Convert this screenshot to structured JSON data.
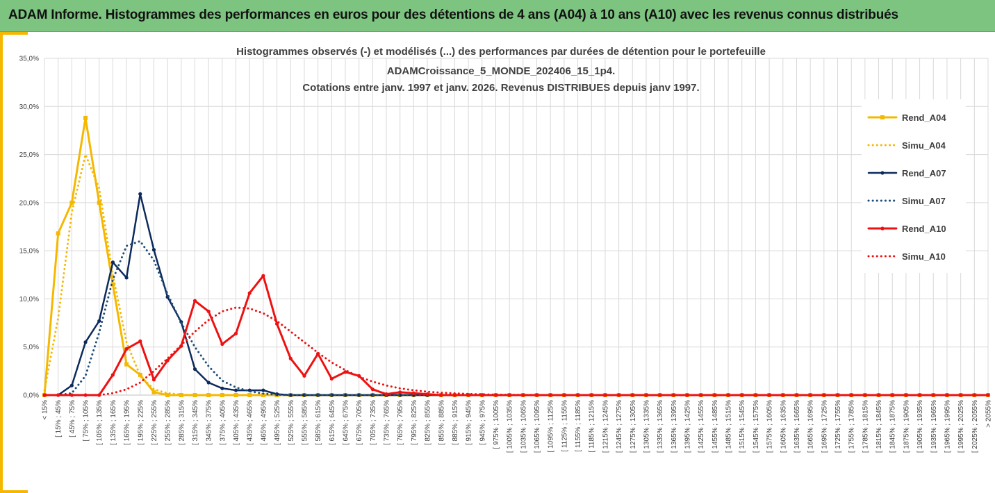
{
  "header": {
    "title": "ADAM Informe. Histogrammes des performances en euros pour des détentions de 4 ans (A04) à 10 ans (A10) avec les revenus connus distribués"
  },
  "chart_data": {
    "type": "line",
    "title_lines": [
      "Histogrammes observés (-) et modélisés (...) des performances par durées de détention pour le portefeuille",
      "ADAMCroissance_5_MONDE_202406_15_1p4.",
      "Cotations entre janv. 1997 et janv. 2026. Revenus DISTRIBUES depuis janv 1997."
    ],
    "y_ticks": [
      "0,0%",
      "5,0%",
      "10,0%",
      "15,0%",
      "20,0%",
      "25,0%",
      "30,0%",
      "35,0%"
    ],
    "ylim": [
      0,
      35
    ],
    "grid": true,
    "legend_position": "right",
    "categories": [
      "< 15%",
      "[ 15% ; 45%",
      "[ 45% ; 75%",
      "[ 75% ; 105%",
      "[ 105% ; 135%",
      "[ 135% ; 165%",
      "[ 165% ; 195%",
      "[ 195% ; 225%",
      "[ 225% ; 255%",
      "[ 255% ; 285%",
      "[ 285% ; 315%",
      "[ 315% ; 345%",
      "[ 345% ; 375%",
      "[ 375% ; 405%",
      "[ 405% ; 435%",
      "[ 435% ; 465%",
      "[ 465% ; 495%",
      "[ 495% ; 525%",
      "[ 525% ; 555%",
      "[ 555% ; 585%",
      "[ 585% ; 615%",
      "[ 615% ; 645%",
      "[ 645% ; 675%",
      "[ 675% ; 705%",
      "[ 705% ; 735%",
      "[ 735% ; 765%",
      "[ 765% ; 795%",
      "[ 795% ; 825%",
      "[ 825% ; 855%",
      "[ 855% ; 885%",
      "[ 885% ; 915%",
      "[ 915% ; 945%",
      "[ 945% ; 975%",
      "[ 975% ; 1005%",
      "[ 1005% ; 1035%",
      "[ 1035% ; 1065%",
      "[ 1065% ; 1095%",
      "[ 1095% ; 1125%",
      "[ 1125% ; 1155%",
      "[ 1155% ; 1185%",
      "[ 1185% ; 1215%",
      "[ 1215% ; 1245%",
      "[ 1245% ; 1275%",
      "[ 1275% ; 1305%",
      "[ 1305% ; 1335%",
      "[ 1335% ; 1365%",
      "[ 1365% ; 1395%",
      "[ 1395% ; 1425%",
      "[ 1425% ; 1455%",
      "[ 1455% ; 1485%",
      "[ 1485% ; 1515%",
      "[ 1515% ; 1545%",
      "[ 1545% ; 1575%",
      "[ 1575% ; 1605%",
      "[ 1605% ; 1635%",
      "[ 1635% ; 1665%",
      "[ 1665% ; 1695%",
      "[ 1695% ; 1725%",
      "[ 1725% ; 1755%",
      "[ 1755% ; 1785%",
      "[ 1785% ; 1815%",
      "[ 1815% ; 1845%",
      "[ 1845% ; 1875%",
      "[ 1875% ; 1905%",
      "[ 1905% ; 1935%",
      "[ 1935% ; 1965%",
      "[ 1965% ; 1995%",
      "[ 1995% ; 2025%",
      "[ 2025% ; 2055%",
      "> 2055%"
    ],
    "series": [
      {
        "name": "Rend_A04",
        "color": "#f5b800",
        "style": "solid",
        "marker": "square",
        "width": 3,
        "values": [
          0.0,
          16.8,
          20.0,
          28.8,
          20.0,
          11.5,
          3.2,
          2.1,
          0.3,
          0.0,
          0.0,
          0.0,
          0.0,
          0.0,
          0.0,
          0.0,
          0.0,
          0.0,
          0,
          0,
          0,
          0,
          0,
          0,
          0,
          0,
          0,
          0,
          0,
          0,
          0,
          0,
          0,
          0,
          0,
          0,
          0,
          0,
          0,
          0,
          0,
          0,
          0,
          0,
          0,
          0,
          0,
          0,
          0,
          0,
          0,
          0,
          0,
          0,
          0,
          0,
          0,
          0,
          0,
          0,
          0,
          0,
          0,
          0,
          0,
          0,
          0,
          0,
          0,
          0
        ]
      },
      {
        "name": "Simu_A04",
        "color": "#f5b800",
        "style": "dotted",
        "marker": "none",
        "width": 3,
        "values": [
          0.5,
          8.0,
          19.0,
          25.0,
          21.5,
          12.5,
          5.5,
          2.0,
          0.6,
          0.2,
          0.05,
          0.0,
          0,
          0,
          0,
          0,
          0,
          0,
          0,
          0,
          0,
          0,
          0,
          0,
          0,
          0,
          0,
          0,
          0,
          0,
          0,
          0,
          0,
          0,
          0,
          0,
          0,
          0,
          0,
          0,
          0,
          0,
          0,
          0,
          0,
          0,
          0,
          0,
          0,
          0,
          0,
          0,
          0,
          0,
          0,
          0,
          0,
          0,
          0,
          0,
          0,
          0,
          0,
          0,
          0,
          0,
          0,
          0,
          0,
          0
        ]
      },
      {
        "name": "Rend_A07",
        "color": "#0d2a5c",
        "style": "solid",
        "marker": "circle",
        "width": 2.5,
        "values": [
          0.0,
          0.0,
          1.0,
          5.5,
          7.7,
          13.8,
          12.2,
          20.9,
          15.1,
          10.2,
          7.6,
          2.7,
          1.3,
          0.7,
          0.5,
          0.5,
          0.5,
          0.1,
          0.0,
          0,
          0,
          0,
          0,
          0,
          0,
          0,
          0,
          0,
          0,
          0,
          0,
          0,
          0,
          0,
          0,
          0,
          0,
          0,
          0,
          0,
          0,
          0,
          0,
          0,
          0,
          0,
          0,
          0,
          0,
          0,
          0,
          0,
          0,
          0,
          0,
          0,
          0,
          0,
          0,
          0,
          0,
          0,
          0,
          0,
          0,
          0,
          0,
          0,
          0,
          0
        ]
      },
      {
        "name": "Simu_A07",
        "color": "#1f4e79",
        "style": "dotted",
        "marker": "none",
        "width": 3,
        "values": [
          0.0,
          0.0,
          0.2,
          2.0,
          6.5,
          12.0,
          15.5,
          16.0,
          14.0,
          10.5,
          7.5,
          5.0,
          3.0,
          1.5,
          0.8,
          0.4,
          0.15,
          0.05,
          0.0,
          0,
          0,
          0,
          0,
          0,
          0,
          0,
          0,
          0,
          0,
          0,
          0,
          0,
          0,
          0,
          0,
          0,
          0,
          0,
          0,
          0,
          0,
          0,
          0,
          0,
          0,
          0,
          0,
          0,
          0,
          0,
          0,
          0,
          0,
          0,
          0,
          0,
          0,
          0,
          0,
          0,
          0,
          0,
          0,
          0,
          0,
          0,
          0,
          0,
          0,
          0
        ]
      },
      {
        "name": "Rend_A10",
        "color": "#ee1111",
        "style": "solid",
        "marker": "circle",
        "width": 3,
        "values": [
          0.0,
          0.0,
          0.0,
          0.0,
          0.0,
          2.1,
          4.8,
          5.6,
          1.6,
          3.6,
          5.1,
          9.8,
          8.7,
          5.3,
          6.4,
          10.6,
          12.4,
          7.4,
          3.8,
          2.0,
          4.3,
          1.7,
          2.4,
          2.0,
          0.6,
          0.1,
          0.3,
          0.2,
          0.1,
          0.0,
          0,
          0,
          0,
          0,
          0,
          0,
          0,
          0,
          0,
          0,
          0,
          0,
          0,
          0,
          0,
          0,
          0,
          0,
          0,
          0,
          0,
          0,
          0,
          0,
          0,
          0,
          0,
          0,
          0,
          0,
          0,
          0,
          0,
          0,
          0,
          0,
          0,
          0,
          0,
          0
        ]
      },
      {
        "name": "Simu_A10",
        "color": "#ee1111",
        "style": "dotted",
        "marker": "none",
        "width": 3,
        "values": [
          0.0,
          0.0,
          0.0,
          0.0,
          0.0,
          0.2,
          0.6,
          1.3,
          2.5,
          3.8,
          5.2,
          6.6,
          7.8,
          8.7,
          9.1,
          9.0,
          8.5,
          7.7,
          6.6,
          5.5,
          4.4,
          3.4,
          2.6,
          1.9,
          1.4,
          1.0,
          0.7,
          0.5,
          0.35,
          0.25,
          0.18,
          0.12,
          0.08,
          0.05,
          0.03,
          0.02,
          0.01,
          0,
          0,
          0,
          0,
          0,
          0,
          0,
          0,
          0,
          0,
          0,
          0,
          0,
          0,
          0,
          0,
          0,
          0,
          0,
          0,
          0,
          0,
          0,
          0,
          0,
          0,
          0,
          0,
          0,
          0,
          0,
          0,
          0
        ]
      }
    ]
  }
}
